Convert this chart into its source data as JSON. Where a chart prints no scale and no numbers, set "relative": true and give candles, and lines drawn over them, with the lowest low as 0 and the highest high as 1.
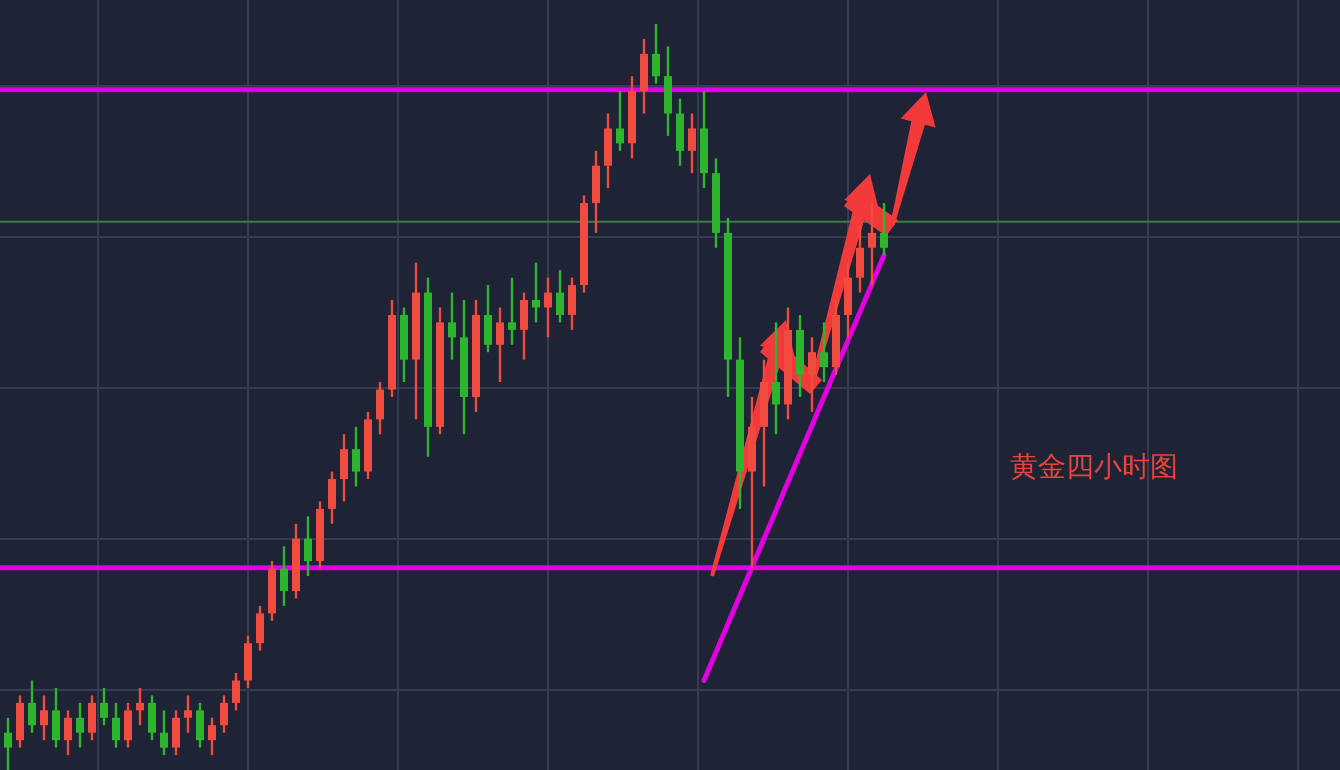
{
  "chart_data": {
    "type": "candlestick",
    "relative": true,
    "grid": true,
    "tick_labels": false,
    "categories": [
      null,
      null,
      null,
      null,
      null,
      null,
      null,
      null,
      null,
      null,
      null,
      null,
      null,
      null,
      null,
      null,
      null,
      null,
      null,
      null,
      null,
      null,
      null,
      null,
      null,
      null,
      null,
      null,
      null,
      null,
      null,
      null,
      null,
      null,
      null,
      null,
      null,
      null,
      null,
      null,
      null,
      null,
      null,
      null,
      null,
      null,
      null,
      null,
      null,
      null,
      null,
      null,
      null,
      null,
      null,
      null,
      null,
      null,
      null,
      null,
      null,
      null,
      null,
      null,
      null,
      null,
      null,
      null,
      null,
      null,
      null,
      null,
      null,
      null
    ],
    "annotations": [
      "黄金四小时图"
    ],
    "series": [
      {
        "type": "line",
        "color": "#e000e0",
        "values": [
          null,
          null,
          null,
          null,
          null,
          null,
          null,
          null,
          null,
          null,
          null,
          null,
          null,
          null,
          null,
          null,
          null,
          null,
          null,
          null,
          null,
          null,
          null,
          null,
          null,
          null,
          null,
          null,
          null,
          null,
          null,
          null,
          null,
          null,
          null,
          null,
          null,
          null,
          null,
          null,
          null,
          null,
          null,
          null,
          null,
          null,
          null,
          null,
          null,
          null,
          null,
          null,
          null,
          null,
          null,
          null,
          null,
          null,
          0.12,
          null,
          null,
          null,
          null,
          null,
          null,
          null,
          null,
          null,
          null,
          null,
          null,
          null,
          null,
          0.69
        ]
      }
    ],
    "ref_lines": [
      {
        "axis": "y",
        "value": 0.912,
        "color": "#e000e0"
      },
      {
        "axis": "y",
        "value": 0.271,
        "color": "#e000e0"
      },
      {
        "axis": "y",
        "value": 0.735,
        "color": "#3d7a4c"
      }
    ],
    "ohlc": [
      [
        0.05,
        0.07,
        0,
        0.03
      ],
      [
        0.04,
        0.1,
        0.03,
        0.09
      ],
      [
        0.09,
        0.12,
        0.05,
        0.06
      ],
      [
        0.06,
        0.1,
        0.04,
        0.08
      ],
      [
        0.08,
        0.11,
        0.03,
        0.04
      ],
      [
        0.04,
        0.08,
        0.02,
        0.07
      ],
      [
        0.07,
        0.09,
        0.03,
        0.05
      ],
      [
        0.05,
        0.1,
        0.04,
        0.09
      ],
      [
        0.09,
        0.11,
        0.06,
        0.07
      ],
      [
        0.07,
        0.09,
        0.03,
        0.04
      ],
      [
        0.04,
        0.09,
        0.03,
        0.08
      ],
      [
        0.08,
        0.11,
        0.06,
        0.09
      ],
      [
        0.09,
        0.1,
        0.04,
        0.05
      ],
      [
        0.05,
        0.08,
        0.02,
        0.03
      ],
      [
        0.03,
        0.08,
        0.02,
        0.07
      ],
      [
        0.07,
        0.1,
        0.05,
        0.08
      ],
      [
        0.08,
        0.09,
        0.03,
        0.04
      ],
      [
        0.04,
        0.07,
        0.02,
        0.06
      ],
      [
        0.06,
        0.1,
        0.05,
        0.09
      ],
      [
        0.09,
        0.13,
        0.08,
        0.12
      ],
      [
        0.12,
        0.18,
        0.11,
        0.17
      ],
      [
        0.17,
        0.22,
        0.16,
        0.21
      ],
      [
        0.21,
        0.28,
        0.2,
        0.27
      ],
      [
        0.27,
        0.3,
        0.22,
        0.24
      ],
      [
        0.24,
        0.33,
        0.23,
        0.31
      ],
      [
        0.31,
        0.34,
        0.26,
        0.28
      ],
      [
        0.28,
        0.36,
        0.27,
        0.35
      ],
      [
        0.35,
        0.4,
        0.33,
        0.39
      ],
      [
        0.39,
        0.45,
        0.36,
        0.43
      ],
      [
        0.43,
        0.46,
        0.38,
        0.4
      ],
      [
        0.4,
        0.48,
        0.39,
        0.47
      ],
      [
        0.47,
        0.52,
        0.45,
        0.51
      ],
      [
        0.51,
        0.63,
        0.5,
        0.61
      ],
      [
        0.61,
        0.62,
        0.52,
        0.55
      ],
      [
        0.55,
        0.68,
        0.47,
        0.64
      ],
      [
        0.64,
        0.66,
        0.42,
        0.46
      ],
      [
        0.46,
        0.62,
        0.45,
        0.6
      ],
      [
        0.6,
        0.64,
        0.55,
        0.58
      ],
      [
        0.58,
        0.63,
        0.45,
        0.5
      ],
      [
        0.5,
        0.63,
        0.48,
        0.61
      ],
      [
        0.61,
        0.65,
        0.56,
        0.57
      ],
      [
        0.57,
        0.62,
        0.52,
        0.6
      ],
      [
        0.6,
        0.66,
        0.57,
        0.59
      ],
      [
        0.59,
        0.64,
        0.55,
        0.63
      ],
      [
        0.63,
        0.68,
        0.6,
        0.62
      ],
      [
        0.62,
        0.66,
        0.58,
        0.64
      ],
      [
        0.64,
        0.67,
        0.6,
        0.61
      ],
      [
        0.61,
        0.66,
        0.59,
        0.65
      ],
      [
        0.65,
        0.77,
        0.64,
        0.76
      ],
      [
        0.76,
        0.83,
        0.72,
        0.81
      ],
      [
        0.81,
        0.88,
        0.78,
        0.86
      ],
      [
        0.86,
        0.91,
        0.83,
        0.84
      ],
      [
        0.84,
        0.93,
        0.82,
        0.91
      ],
      [
        0.91,
        0.98,
        0.88,
        0.96
      ],
      [
        0.96,
        1.0,
        0.92,
        0.93
      ],
      [
        0.93,
        0.97,
        0.85,
        0.88
      ],
      [
        0.88,
        0.9,
        0.81,
        0.83
      ],
      [
        0.83,
        0.88,
        0.8,
        0.86
      ],
      [
        0.86,
        0.91,
        0.78,
        0.8
      ],
      [
        0.8,
        0.82,
        0.7,
        0.72
      ],
      [
        0.72,
        0.74,
        0.5,
        0.55
      ],
      [
        0.55,
        0.58,
        0.35,
        0.4
      ],
      [
        0.4,
        0.5,
        0.27,
        0.46
      ],
      [
        0.46,
        0.55,
        0.38,
        0.52
      ],
      [
        0.52,
        0.6,
        0.45,
        0.49
      ],
      [
        0.49,
        0.62,
        0.47,
        0.59
      ],
      [
        0.59,
        0.61,
        0.5,
        0.53
      ],
      [
        0.53,
        0.58,
        0.48,
        0.56
      ],
      [
        0.56,
        0.6,
        0.52,
        0.54
      ],
      [
        0.54,
        0.63,
        0.53,
        0.61
      ],
      [
        0.61,
        0.68,
        0.58,
        0.66
      ],
      [
        0.66,
        0.73,
        0.64,
        0.7
      ],
      [
        0.7,
        0.76,
        0.65,
        0.72
      ],
      [
        0.72,
        0.76,
        0.69,
        0.7
      ]
    ],
    "colors": [
      "#2db52d",
      "#f04b3f",
      "#2db52d",
      "#f04b3f",
      "#2db52d",
      "#f04b3f",
      "#2db52d",
      "#f04b3f",
      "#2db52d",
      "#2db52d",
      "#f04b3f",
      "#f04b3f",
      "#2db52d",
      "#2db52d",
      "#f04b3f",
      "#f04b3f",
      "#2db52d",
      "#f04b3f",
      "#f04b3f",
      "#f04b3f",
      "#f04b3f",
      "#f04b3f",
      "#f04b3f",
      "#2db52d",
      "#f04b3f",
      "#2db52d",
      "#f04b3f",
      "#f04b3f",
      "#f04b3f",
      "#2db52d",
      "#f04b3f",
      "#f04b3f",
      "#f04b3f",
      "#2db52d",
      "#f04b3f",
      "#2db52d",
      "#f04b3f",
      "#2db52d",
      "#2db52d",
      "#f04b3f",
      "#2db52d",
      "#f04b3f",
      "#2db52d",
      "#f04b3f",
      "#2db52d",
      "#f04b3f",
      "#2db52d",
      "#f04b3f",
      "#f04b3f",
      "#f04b3f",
      "#f04b3f",
      "#2db52d",
      "#f04b3f",
      "#f04b3f",
      "#2db52d",
      "#2db52d",
      "#2db52d",
      "#f04b3f",
      "#2db52d",
      "#2db52d",
      "#2db52d",
      "#2db52d",
      "#f04b3f",
      "#f04b3f",
      "#2db52d",
      "#f04b3f",
      "#2db52d",
      "#f04b3f",
      "#2db52d",
      "#f04b3f",
      "#f04b3f",
      "#f04b3f",
      "#f04b3f",
      "#2db52d"
    ]
  }
}
